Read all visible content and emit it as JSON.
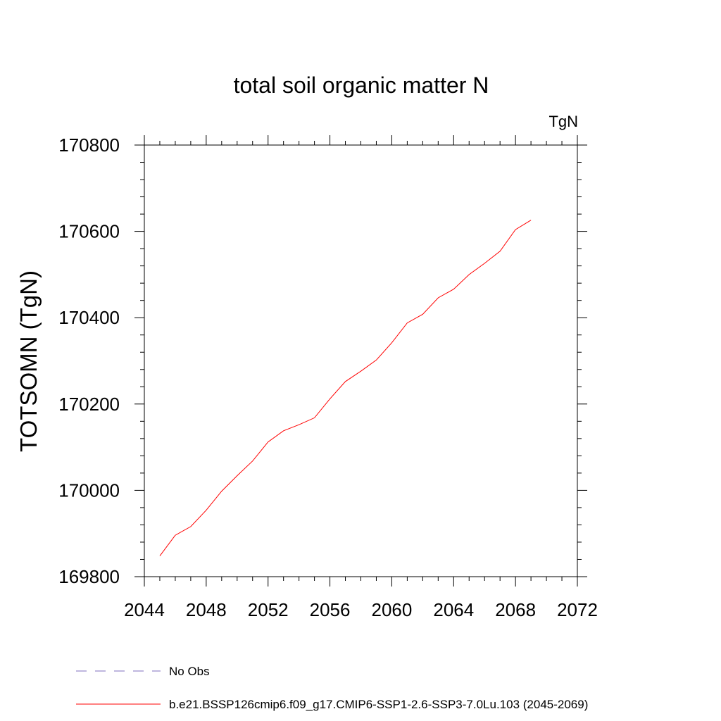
{
  "chart_data": {
    "type": "line",
    "title": "total soil organic matter N",
    "units": "TgN",
    "ylabel": "TOTSOMN  (TgN)",
    "xlabel": "",
    "xlim": [
      2044,
      2072
    ],
    "ylim": [
      169800,
      170800
    ],
    "x_ticks": [
      2044,
      2048,
      2052,
      2056,
      2060,
      2064,
      2068,
      2072
    ],
    "y_ticks": [
      169800,
      170000,
      170200,
      170400,
      170600,
      170800
    ],
    "x_tick_labels": [
      "2044",
      "2048",
      "2052",
      "2056",
      "2060",
      "2064",
      "2068",
      "2072"
    ],
    "y_tick_labels": [
      "169800",
      "170000",
      "170200",
      "170400",
      "170600",
      "170800"
    ],
    "grid": false,
    "series": [
      {
        "name": "b.e21.BSSP126cmip6.f09_g17.CMIP6-SSP1-2.6-SSP3-7.0Lu.103 (2045-2069)",
        "color": "#ff0000",
        "line_style": "solid",
        "x": [
          2045,
          2046,
          2047,
          2048,
          2049,
          2050,
          2051,
          2052,
          2053,
          2054,
          2055,
          2056,
          2057,
          2058,
          2059,
          2060,
          2061,
          2062,
          2063,
          2064,
          2065,
          2066,
          2067,
          2068,
          2069
        ],
        "values": [
          169848,
          169896,
          169916,
          169954,
          169998,
          170034,
          170068,
          170112,
          170138,
          170152,
          170168,
          170212,
          170252,
          170276,
          170302,
          170342,
          170388,
          170408,
          170446,
          170466,
          170500,
          170526,
          170554,
          170604,
          170626
        ]
      }
    ],
    "legend": {
      "placement": "bottom",
      "entries": [
        {
          "label": "No Obs",
          "color": "#7f6fbf",
          "line_style": "dashed"
        },
        {
          "label": "b.e21.BSSP126cmip6.f09_g17.CMIP6-SSP1-2.6-SSP3-7.0Lu.103 (2045-2069)",
          "color": "#ff0000",
          "line_style": "solid"
        }
      ]
    }
  }
}
